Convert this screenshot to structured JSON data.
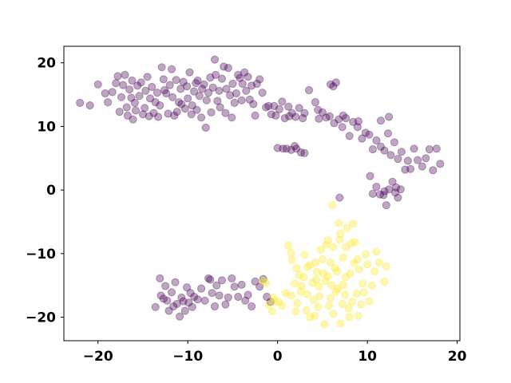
{
  "chart_data": {
    "type": "scatter",
    "title": "",
    "xlabel": "",
    "ylabel": "",
    "xlim": [
      -23.8,
      20.3
    ],
    "ylim": [
      -23.7,
      22.6
    ],
    "xticks": [
      -20,
      -10,
      0,
      10,
      20
    ],
    "xtick_labels": [
      "−20",
      "−10",
      "0",
      "10",
      "20"
    ],
    "yticks": [
      -20,
      -10,
      0,
      10,
      20
    ],
    "ytick_labels": [
      "−20",
      "−10",
      "0",
      "10",
      "20"
    ],
    "grid": false,
    "marker_alpha": 0.35,
    "series": [
      {
        "color": "#440154",
        "points": [
          [
            -22.0,
            13.7
          ],
          [
            -20.9,
            13.3
          ],
          [
            -20.0,
            16.6
          ],
          [
            -19.2,
            15.2
          ],
          [
            -18.9,
            13.8
          ],
          [
            -18.4,
            15.4
          ],
          [
            -18.0,
            16.8
          ],
          [
            -17.8,
            17.9
          ],
          [
            -17.6,
            12.3
          ],
          [
            -17.4,
            14.6
          ],
          [
            -17.2,
            16.5
          ],
          [
            -17.0,
            18.1
          ],
          [
            -16.8,
            13.0
          ],
          [
            -16.7,
            11.7
          ],
          [
            -16.5,
            15.8
          ],
          [
            -16.3,
            14.5
          ],
          [
            -16.2,
            17.2
          ],
          [
            -16.1,
            11.1
          ],
          [
            -15.9,
            13.7
          ],
          [
            -15.8,
            12.5
          ],
          [
            -15.6,
            16.4
          ],
          [
            -15.4,
            14.8
          ],
          [
            -15.2,
            16.9
          ],
          [
            -15.0,
            11.9
          ],
          [
            -14.8,
            12.9
          ],
          [
            -14.7,
            15.6
          ],
          [
            -14.5,
            17.8
          ],
          [
            -14.3,
            11.6
          ],
          [
            -14.2,
            14.4
          ],
          [
            -14.0,
            16.2
          ],
          [
            -13.8,
            12.1
          ],
          [
            -13.6,
            13.8
          ],
          [
            -13.4,
            15.3
          ],
          [
            -13.3,
            11.5
          ],
          [
            -13.1,
            13.3
          ],
          [
            -12.9,
            19.3
          ],
          [
            -12.7,
            17.4
          ],
          [
            -12.6,
            15.7
          ],
          [
            -12.4,
            15.2
          ],
          [
            -12.2,
            12.0
          ],
          [
            -12.0,
            16.5
          ],
          [
            -11.8,
            19.0
          ],
          [
            -11.7,
            14.6
          ],
          [
            -11.5,
            11.7
          ],
          [
            -11.3,
            17.3
          ],
          [
            -11.2,
            12.3
          ],
          [
            -11.0,
            13.8
          ],
          [
            -10.8,
            15.9
          ],
          [
            -10.7,
            13.5
          ],
          [
            -10.5,
            17.0
          ],
          [
            -10.3,
            12.8
          ],
          [
            -10.1,
            16.3
          ],
          [
            -10.0,
            14.4
          ],
          [
            -9.8,
            18.5
          ],
          [
            -9.6,
            11.9
          ],
          [
            -9.5,
            13.3
          ],
          [
            -9.3,
            15.5
          ],
          [
            -9.1,
            16.8
          ],
          [
            -9.0,
            12.6
          ],
          [
            -8.9,
            17.2
          ],
          [
            -8.7,
            14.8
          ],
          [
            -8.5,
            11.4
          ],
          [
            -8.4,
            15.9
          ],
          [
            -8.2,
            16.6
          ],
          [
            -8.0,
            9.8
          ],
          [
            -7.9,
            14.1
          ],
          [
            -7.7,
            15.3
          ],
          [
            -7.5,
            17.7
          ],
          [
            -7.4,
            12.2
          ],
          [
            -7.2,
            16.1
          ],
          [
            -7.0,
            20.5
          ],
          [
            -6.9,
            18.1
          ],
          [
            -6.7,
            14.0
          ],
          [
            -6.5,
            15.6
          ],
          [
            -6.4,
            13.0
          ],
          [
            -6.2,
            17.5
          ],
          [
            -6.0,
            19.4
          ],
          [
            -5.8,
            12.1
          ],
          [
            -5.7,
            15.9
          ],
          [
            -5.5,
            19.2
          ],
          [
            -5.3,
            14.9
          ],
          [
            -5.1,
            11.4
          ],
          [
            -5.0,
            16.7
          ],
          [
            -4.8,
            13.7
          ],
          [
            -4.6,
            15.2
          ],
          [
            -4.4,
            18.1
          ],
          [
            -4.2,
            17.6
          ],
          [
            -4.0,
            14.1
          ],
          [
            -3.9,
            16.7
          ],
          [
            -3.7,
            18.5
          ],
          [
            -3.5,
            15.6
          ],
          [
            -3.3,
            17.8
          ],
          [
            -3.1,
            14.2
          ],
          [
            -2.9,
            16.4
          ],
          [
            -2.7,
            13.5
          ],
          [
            -2.5,
            11.7
          ],
          [
            -2.3,
            16.7
          ],
          [
            -2.0,
            17.4
          ],
          [
            -1.7,
            15.3
          ],
          [
            -1.3,
            13.0
          ],
          [
            -1.0,
            13.2
          ],
          [
            -0.7,
            11.9
          ],
          [
            -0.4,
            13.2
          ],
          [
            -0.2,
            11.7
          ],
          [
            0.2,
            12.7
          ],
          [
            0.5,
            13.9
          ],
          [
            0.8,
            11.3
          ],
          [
            1.2,
            13.1
          ],
          [
            1.6,
            12.1
          ],
          [
            2.0,
            11.5
          ],
          [
            2.4,
            12.9
          ],
          [
            2.8,
            11.3
          ],
          [
            3.5,
            15.7
          ],
          [
            4.2,
            13.8
          ],
          [
            4.5,
            12.6
          ],
          [
            5.0,
            12.2
          ],
          [
            5.4,
            11.4
          ],
          [
            5.9,
            16.6
          ],
          [
            6.2,
            16.3
          ],
          [
            6.5,
            16.9
          ],
          [
            5.8,
            11.6
          ],
          [
            6.3,
            10.5
          ],
          [
            6.8,
            11.1
          ],
          [
            7.2,
            9.9
          ],
          [
            7.6,
            11.3
          ],
          [
            8.0,
            8.5
          ],
          [
            8.4,
            10.7
          ],
          [
            8.9,
            9.9
          ],
          [
            9.4,
            8.1
          ],
          [
            9.8,
            9.0
          ],
          [
            10.2,
            8.7
          ],
          [
            10.6,
            6.4
          ],
          [
            11.0,
            7.8
          ],
          [
            11.5,
            6.8
          ],
          [
            11.9,
            6.2
          ],
          [
            12.3,
            8.9
          ],
          [
            12.6,
            5.5
          ],
          [
            13.0,
            7.5
          ],
          [
            13.4,
            4.9
          ],
          [
            13.8,
            6.0
          ],
          [
            14.2,
            3.2
          ],
          [
            14.5,
            4.6
          ],
          [
            14.8,
            3.3
          ],
          [
            15.2,
            6.5
          ],
          [
            15.6,
            4.7
          ],
          [
            16.1,
            3.7
          ],
          [
            16.5,
            5.0
          ],
          [
            16.9,
            6.4
          ],
          [
            17.3,
            3.1
          ],
          [
            17.7,
            6.5
          ],
          [
            18.1,
            4.1
          ],
          [
            10.3,
            2.2
          ],
          [
            11.0,
            0.5
          ],
          [
            11.4,
            -0.7
          ],
          [
            11.8,
            -0.8
          ],
          [
            12.1,
            -2.4
          ],
          [
            12.4,
            0.1
          ],
          [
            12.8,
            1.3
          ],
          [
            13.1,
            -0.4
          ],
          [
            13.4,
            -1.2
          ],
          [
            13.7,
            0.1
          ],
          [
            10.6,
            -0.6
          ],
          [
            11.9,
            -0.2
          ],
          [
            13.2,
            0.4
          ],
          [
            6.9,
            -1.2
          ],
          [
            0.0,
            6.6
          ],
          [
            0.6,
            6.5
          ],
          [
            1.0,
            6.5
          ],
          [
            1.5,
            6.3
          ],
          [
            2.1,
            6.5
          ],
          [
            2.6,
            5.9
          ],
          [
            3.0,
            5.8
          ],
          [
            1.9,
            6.9
          ],
          [
            1.3,
            11.6
          ],
          [
            3.0,
            12.1
          ],
          [
            4.6,
            11.2
          ],
          [
            7.3,
            11.7
          ],
          [
            9.0,
            10.8
          ],
          [
            12.4,
            11.5
          ],
          [
            11.5,
            10.9
          ],
          [
            -13.6,
            -18.4
          ],
          [
            -13.1,
            -13.9
          ],
          [
            -13.0,
            -16.6
          ],
          [
            -12.7,
            -17.1
          ],
          [
            -12.5,
            -15.1
          ],
          [
            -12.3,
            -17.4
          ],
          [
            -12.1,
            -19.0
          ],
          [
            -11.8,
            -16.1
          ],
          [
            -11.6,
            -18.3
          ],
          [
            -11.4,
            -14.5
          ],
          [
            -11.2,
            -17.9
          ],
          [
            -10.9,
            -19.9
          ],
          [
            -10.7,
            -16.9
          ],
          [
            -10.5,
            -17.5
          ],
          [
            -10.3,
            -19.0
          ],
          [
            -10.1,
            -15.3
          ],
          [
            -9.9,
            -17.7
          ],
          [
            -9.7,
            -16.2
          ],
          [
            -9.5,
            -18.4
          ],
          [
            -9.3,
            -16.8
          ],
          [
            -8.9,
            -17.2
          ],
          [
            -8.5,
            -15.5
          ],
          [
            -8.1,
            -17.4
          ],
          [
            -7.7,
            -13.9
          ],
          [
            -7.5,
            -14.1
          ],
          [
            -7.3,
            -16.2
          ],
          [
            -7.0,
            -18.3
          ],
          [
            -6.8,
            -15.0
          ],
          [
            -6.5,
            -16.6
          ],
          [
            -6.2,
            -14.2
          ],
          [
            -5.8,
            -18.0
          ],
          [
            -5.5,
            -16.9
          ],
          [
            -5.1,
            -13.9
          ],
          [
            -4.8,
            -15.2
          ],
          [
            -4.4,
            -16.8
          ],
          [
            -4.0,
            -14.9
          ],
          [
            -3.6,
            -17.4
          ],
          [
            -3.3,
            -16.5
          ],
          [
            -2.9,
            -18.3
          ],
          [
            -2.5,
            -14.4
          ],
          [
            -2.0,
            -15.2
          ],
          [
            -1.6,
            -14.0
          ],
          [
            -1.2,
            -16.8
          ],
          [
            -0.8,
            -17.6
          ]
        ]
      },
      {
        "color": "#fde725",
        "points": [
          [
            1.2,
            -8.7
          ],
          [
            1.6,
            -11.0
          ],
          [
            2.1,
            -12.3
          ],
          [
            2.4,
            -13.4
          ],
          [
            2.7,
            -15.1
          ],
          [
            3.0,
            -10.2
          ],
          [
            3.3,
            -16.4
          ],
          [
            3.6,
            -11.8
          ],
          [
            3.9,
            -14.6
          ],
          [
            4.1,
            -19.8
          ],
          [
            4.4,
            -12.9
          ],
          [
            4.7,
            -16.7
          ],
          [
            5.0,
            -10.9
          ],
          [
            5.3,
            -14.3
          ],
          [
            5.6,
            -7.9
          ],
          [
            5.9,
            -17.0
          ],
          [
            6.2,
            -9.0
          ],
          [
            6.4,
            -12.3
          ],
          [
            6.7,
            -15.5
          ],
          [
            7.0,
            -6.9
          ],
          [
            7.3,
            -10.6
          ],
          [
            7.6,
            -13.7
          ],
          [
            7.9,
            -18.6
          ],
          [
            8.2,
            -8.4
          ],
          [
            8.5,
            -11.5
          ],
          [
            8.8,
            -16.3
          ],
          [
            9.1,
            -12.5
          ],
          [
            9.5,
            -14.7
          ],
          [
            9.8,
            -10.1
          ],
          [
            10.2,
            -17.5
          ],
          [
            11.0,
            -9.7
          ],
          [
            11.3,
            -11.4
          ],
          [
            11.9,
            -14.4
          ],
          [
            12.1,
            -12.0
          ],
          [
            6.8,
            -5.2
          ],
          [
            7.7,
            -6.0
          ],
          [
            8.4,
            -5.3
          ],
          [
            6.1,
            -2.4
          ],
          [
            8.6,
            -8.2
          ],
          [
            4.8,
            -9.4
          ],
          [
            5.6,
            -13.6
          ],
          [
            6.5,
            -16.0
          ],
          [
            7.2,
            -17.9
          ],
          [
            8.0,
            -20.0
          ],
          [
            9.0,
            -19.8
          ],
          [
            6.2,
            -19.5
          ],
          [
            5.2,
            -21.1
          ],
          [
            4.5,
            -18.4
          ],
          [
            3.2,
            -18.9
          ],
          [
            2.0,
            -19.1
          ],
          [
            1.5,
            -16.6
          ],
          [
            0.5,
            -18.2
          ],
          [
            0.1,
            -17.6
          ],
          [
            -0.3,
            -17.5
          ],
          [
            -0.5,
            -16.9
          ],
          [
            -1.0,
            -18.1
          ],
          [
            -0.6,
            -19.1
          ],
          [
            1.9,
            -14.7
          ],
          [
            2.6,
            -16.0
          ],
          [
            3.3,
            -12.1
          ],
          [
            4.6,
            -15.2
          ],
          [
            5.1,
            -13.1
          ],
          [
            5.9,
            -11.4
          ],
          [
            6.6,
            -12.8
          ],
          [
            7.3,
            -14.9
          ],
          [
            8.1,
            -13.1
          ],
          [
            8.9,
            -10.9
          ],
          [
            9.3,
            -18.0
          ],
          [
            10.5,
            -15.0
          ],
          [
            10.8,
            -12.8
          ],
          [
            6.9,
            -7.8
          ],
          [
            7.6,
            -9.0
          ],
          [
            5.4,
            -8.6
          ],
          [
            4.0,
            -17.3
          ],
          [
            2.2,
            -17.8
          ],
          [
            3.6,
            -20.0
          ],
          [
            7.0,
            -21.0
          ],
          [
            8.3,
            -17.6
          ],
          [
            9.6,
            -16.1
          ],
          [
            10.0,
            -11.7
          ],
          [
            4.2,
            -11.4
          ],
          [
            2.9,
            -13.7
          ],
          [
            -1.3,
            -14.6
          ],
          [
            -1.6,
            -14.3
          ],
          [
            0.9,
            -16.2
          ],
          [
            1.5,
            -9.9
          ],
          [
            6.0,
            -15.0
          ],
          [
            7.5,
            -16.5
          ],
          [
            5.7,
            -18.2
          ],
          [
            4.3,
            -14.1
          ]
        ]
      }
    ]
  }
}
